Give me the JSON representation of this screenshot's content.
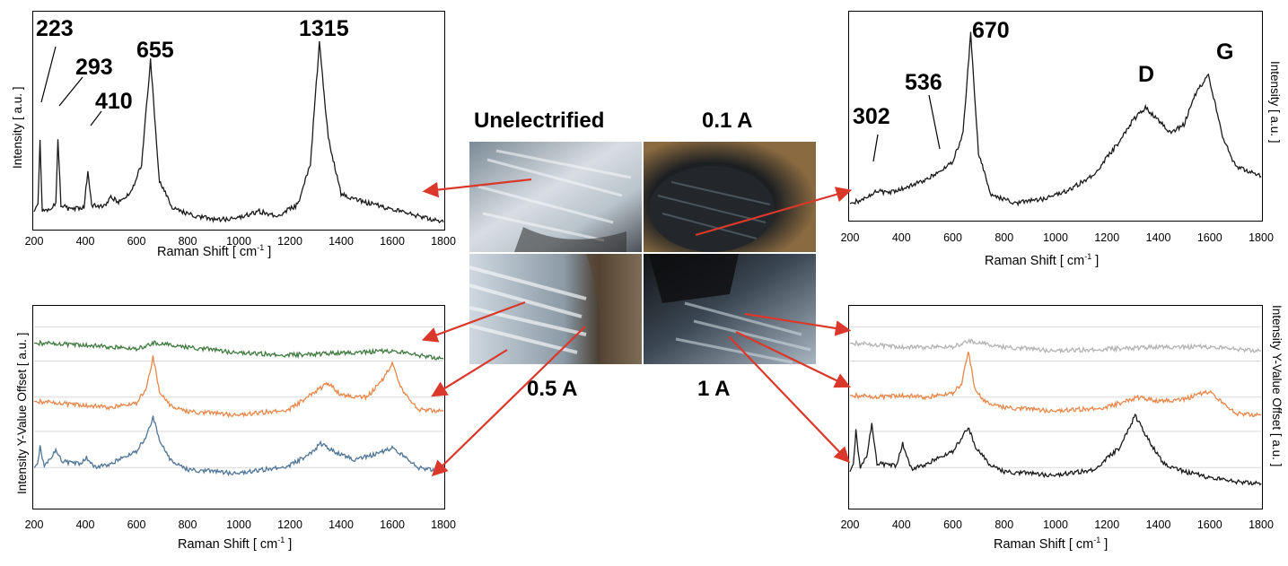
{
  "conditions": {
    "unelectrified": "Unelectrified",
    "a01": "0.1 A",
    "a05": "0.5 A",
    "a1": "1 A"
  },
  "colors": {
    "unelectrified": "#1a1a1a",
    "orange": "#e8874a",
    "green": "#3f7a3f",
    "blue": "#4f7597",
    "gray": "#b3b3b3",
    "arrow": "#d9382b"
  },
  "chart_data": [
    {
      "id": "top-left",
      "type": "line",
      "xlabel": "Raman Shift [ cm-1 ]",
      "ylabel": "Intensity [ a.u. ]",
      "xlim": [
        200,
        1800
      ],
      "xticks": [
        "200",
        "400",
        "600",
        "800",
        "1000",
        "1200",
        "1400",
        "1600",
        "1800"
      ],
      "peak_labels": [
        "223",
        "293",
        "410",
        "655",
        "1315"
      ],
      "series": [
        {
          "color": "#1a1a1a",
          "x": [
            200,
            215,
            223,
            232,
            260,
            285,
            293,
            305,
            340,
            395,
            410,
            425,
            470,
            500,
            530,
            580,
            620,
            655,
            690,
            740,
            800,
            900,
            1000,
            1080,
            1150,
            1230,
            1280,
            1315,
            1350,
            1400,
            1500,
            1600,
            1700,
            1800
          ],
          "y": [
            8,
            12,
            40,
            9,
            8,
            12,
            42,
            11,
            9,
            10,
            27,
            11,
            10,
            15,
            12,
            17,
            30,
            78,
            22,
            10,
            7,
            4,
            5,
            8,
            6,
            11,
            30,
            86,
            42,
            16,
            12,
            9,
            6,
            3
          ]
        }
      ]
    },
    {
      "id": "top-right",
      "type": "line",
      "xlabel": "Raman Shift [ cm-1 ]",
      "ylabel": "Intensity [ a.u. ]",
      "xlim": [
        200,
        1800
      ],
      "xticks": [
        "200",
        "400",
        "600",
        "800",
        "1000",
        "1200",
        "1400",
        "1600",
        "1800"
      ],
      "peak_labels": [
        "302",
        "536",
        "670",
        "D",
        "G"
      ],
      "series": [
        {
          "color": "#1a1a1a",
          "x": [
            200,
            260,
            302,
            350,
            450,
            536,
            600,
            640,
            670,
            700,
            750,
            850,
            950,
            1050,
            1150,
            1250,
            1300,
            1350,
            1400,
            1450,
            1500,
            1550,
            1595,
            1650,
            1700,
            1800
          ],
          "y": [
            8,
            10,
            14,
            13,
            17,
            22,
            28,
            42,
            90,
            32,
            12,
            8,
            10,
            14,
            22,
            38,
            48,
            54,
            48,
            42,
            46,
            62,
            70,
            40,
            26,
            21
          ]
        }
      ]
    },
    {
      "id": "bottom-left",
      "type": "line",
      "xlabel": "Raman Shift [ cm-1 ]",
      "ylabel": "Intensity Y-Value Offset [ a.u. ]",
      "xlim": [
        200,
        1800
      ],
      "xticks": [
        "200",
        "400",
        "600",
        "800",
        "1000",
        "1200",
        "1400",
        "1600",
        "1800"
      ],
      "series": [
        {
          "color": "#3f7a3f",
          "x": [
            200,
            400,
            600,
            670,
            800,
            1000,
            1200,
            1400,
            1600,
            1800
          ],
          "y": [
            82,
            81,
            79,
            82,
            80,
            77,
            76,
            77,
            78,
            74
          ]
        },
        {
          "color": "#e8874a",
          "x": [
            200,
            300,
            400,
            500,
            600,
            640,
            665,
            690,
            730,
            800,
            1000,
            1200,
            1300,
            1350,
            1400,
            1500,
            1560,
            1600,
            1640,
            1700,
            1800
          ],
          "y": [
            53,
            52,
            51,
            50,
            52,
            60,
            75,
            58,
            51,
            48,
            46,
            49,
            58,
            62,
            56,
            55,
            63,
            72,
            58,
            49,
            48
          ]
        },
        {
          "color": "#4f7597",
          "x": [
            200,
            213,
            223,
            240,
            265,
            285,
            310,
            380,
            405,
            440,
            500,
            600,
            640,
            665,
            690,
            730,
            800,
            1000,
            1200,
            1280,
            1320,
            1370,
            1450,
            1550,
            1600,
            1650,
            1700,
            1800
          ],
          "y": [
            20,
            22,
            30,
            21,
            24,
            29,
            23,
            22,
            25,
            20,
            22,
            28,
            36,
            45,
            34,
            24,
            19,
            17,
            21,
            27,
            32,
            28,
            24,
            27,
            30,
            25,
            20,
            18
          ]
        }
      ]
    },
    {
      "id": "bottom-right",
      "type": "line",
      "xlabel": "Raman Shift [ cm-1 ]",
      "ylabel": "Intensity Y-Value Offset [ a.u. ]",
      "xlim": [
        200,
        1800
      ],
      "xticks": [
        "200",
        "400",
        "600",
        "800",
        "1000",
        "1200",
        "1400",
        "1600",
        "1800"
      ],
      "series": [
        {
          "color": "#b3b3b3",
          "x": [
            200,
            400,
            600,
            660,
            800,
            1000,
            1200,
            1400,
            1600,
            1800
          ],
          "y": [
            82,
            80,
            80,
            83,
            80,
            78,
            79,
            80,
            80,
            78
          ]
        },
        {
          "color": "#e8874a",
          "x": [
            200,
            300,
            400,
            500,
            600,
            635,
            660,
            685,
            720,
            800,
            1000,
            1200,
            1320,
            1400,
            1500,
            1600,
            1650,
            1700,
            1800
          ],
          "y": [
            56,
            55,
            56,
            55,
            57,
            62,
            78,
            60,
            53,
            50,
            48,
            50,
            55,
            53,
            54,
            58,
            52,
            47,
            46
          ]
        },
        {
          "color": "#1a1a1a",
          "x": [
            200,
            213,
            223,
            240,
            265,
            285,
            305,
            380,
            405,
            440,
            500,
            600,
            640,
            660,
            690,
            740,
            800,
            1000,
            1150,
            1250,
            1310,
            1360,
            1420,
            1500,
            1600,
            1700,
            1800
          ],
          "y": [
            18,
            22,
            38,
            20,
            25,
            42,
            22,
            21,
            32,
            19,
            22,
            28,
            36,
            40,
            30,
            22,
            18,
            16,
            19,
            30,
            46,
            34,
            22,
            18,
            15,
            13,
            12
          ]
        }
      ]
    }
  ]
}
